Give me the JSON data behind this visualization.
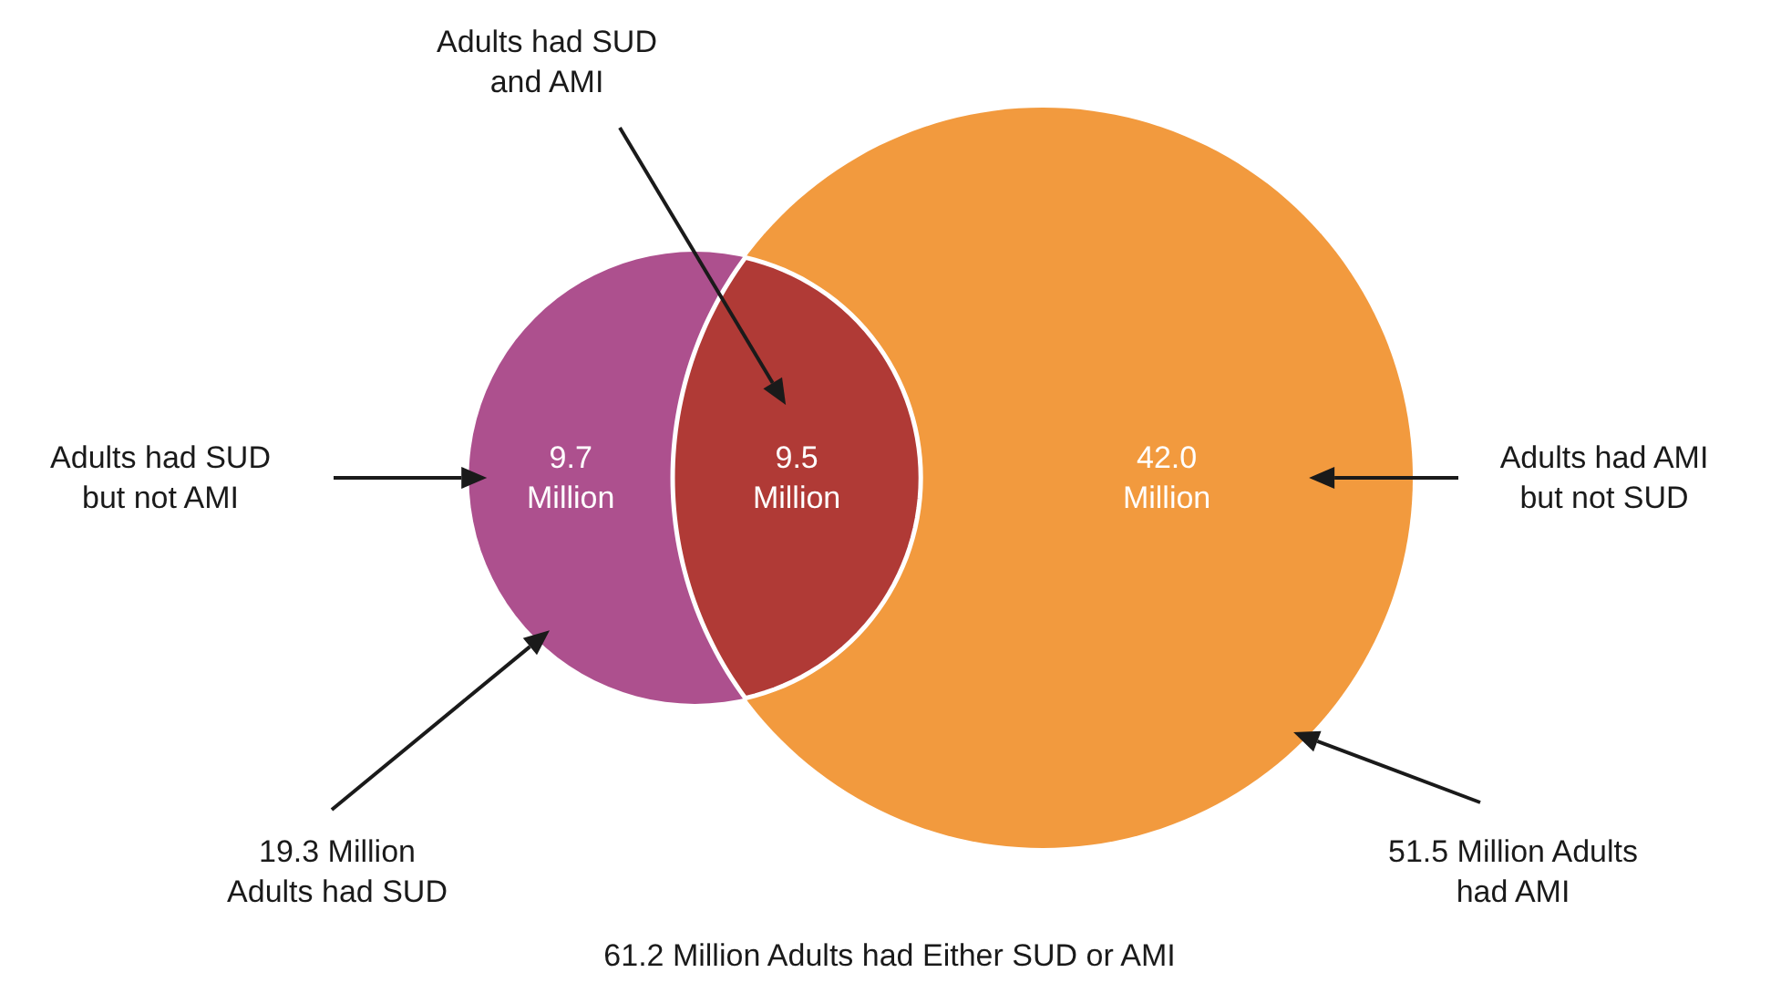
{
  "chart_data": {
    "type": "other",
    "categories": [
      "Adults had SUD\nbut not AMI",
      "Adults had SUD\nand AMI",
      "Adults had AMI\nbut not SUD"
    ],
    "values": [
      9.7,
      9.5,
      42.0
    ],
    "colors": [
      "#ad508e",
      "#b03a36",
      "#f29a3e"
    ],
    "value_labels": [
      "9.7\nMillion",
      "9.5\nMillion",
      "42.0\nMillion"
    ],
    "annotations": [
      "19.3 Million\nAdults had SUD",
      "51.5 Million Adults\nhad AMI",
      "61.2 Million Adults had Either SUD or AMI"
    ]
  }
}
